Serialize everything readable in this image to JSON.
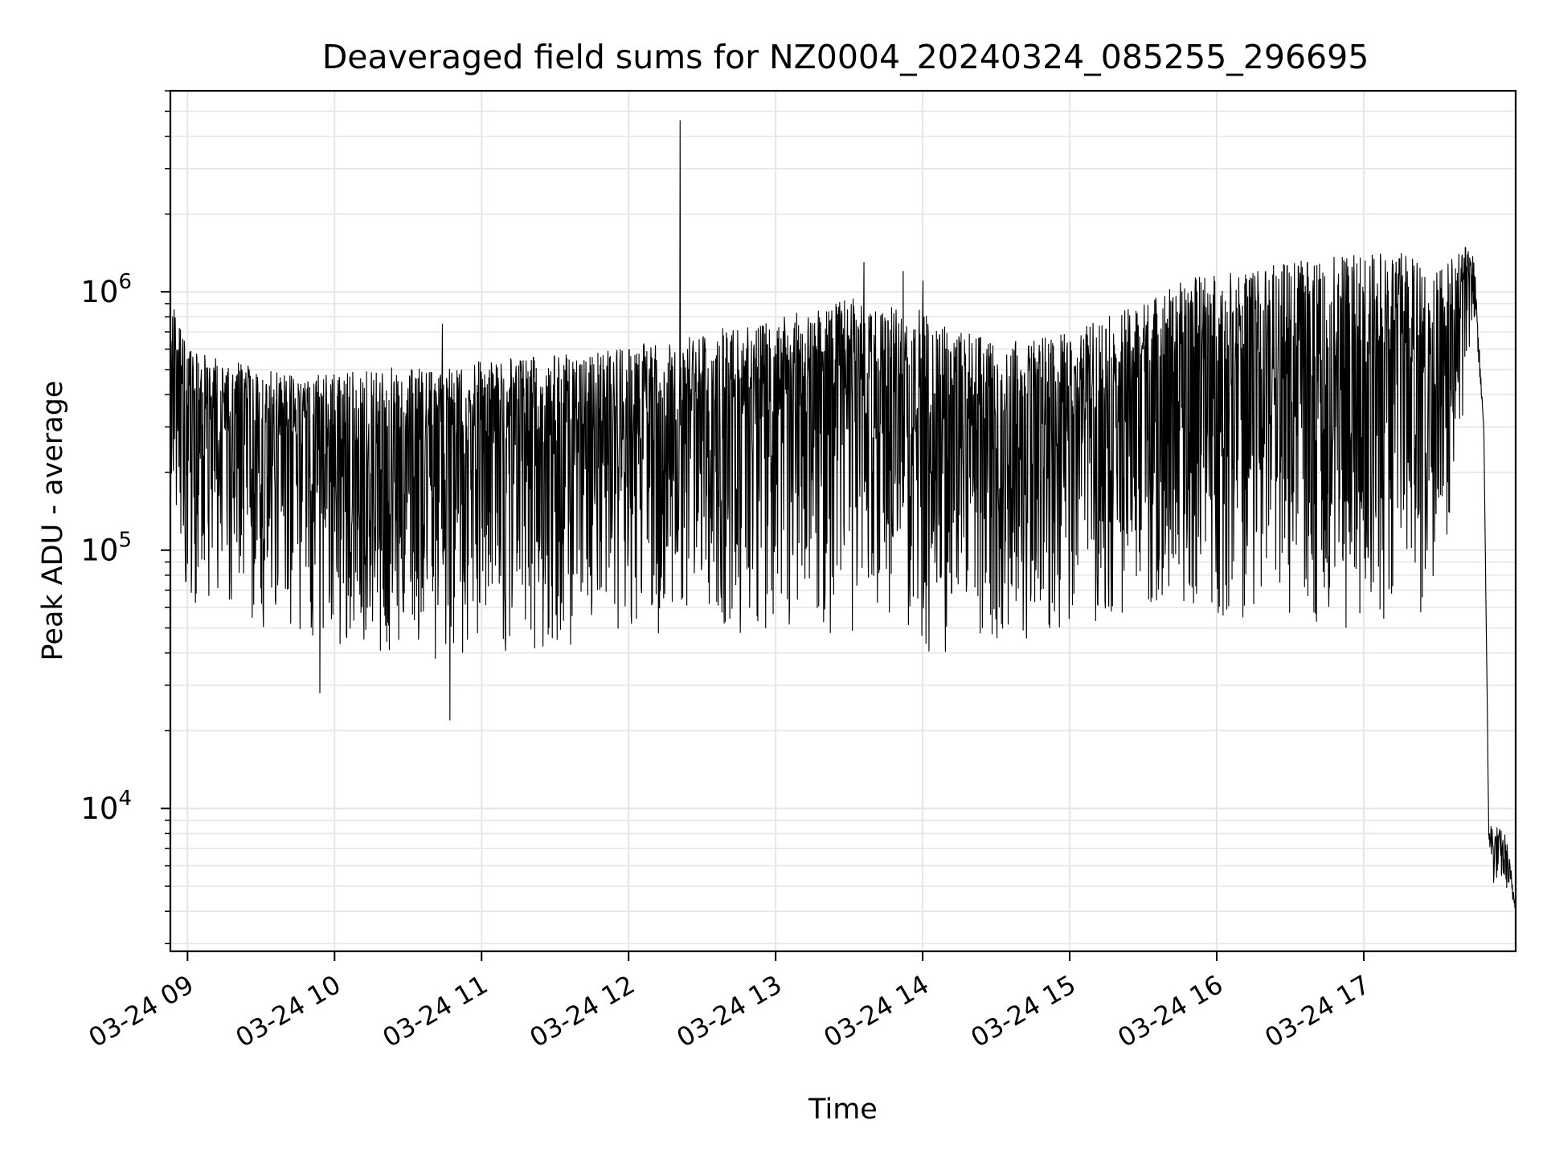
{
  "chart_data": {
    "type": "line",
    "title": "Deaveraged field sums for NZ0004_20240324_085255_296695",
    "xlabel": "Time",
    "ylabel": "Peak ADU - average",
    "x_scale": "time",
    "y_scale": "log",
    "xlim": [
      "2024-03-24 08:53",
      "2024-03-24 18:02"
    ],
    "ylim": [
      2800,
      6000000
    ],
    "x_ticks": [
      {
        "value": "2024-03-24 09:00",
        "label": "03-24 09"
      },
      {
        "value": "2024-03-24 10:00",
        "label": "03-24 10"
      },
      {
        "value": "2024-03-24 11:00",
        "label": "03-24 11"
      },
      {
        "value": "2024-03-24 12:00",
        "label": "03-24 12"
      },
      {
        "value": "2024-03-24 13:00",
        "label": "03-24 13"
      },
      {
        "value": "2024-03-24 14:00",
        "label": "03-24 14"
      },
      {
        "value": "2024-03-24 15:00",
        "label": "03-24 15"
      },
      {
        "value": "2024-03-24 16:00",
        "label": "03-24 16"
      },
      {
        "value": "2024-03-24 17:00",
        "label": "03-24 17"
      }
    ],
    "y_ticks": [
      {
        "value": 10000,
        "base": "10",
        "exponent": "4"
      },
      {
        "value": 100000,
        "base": "10",
        "exponent": "5"
      },
      {
        "value": 1000000,
        "base": "10",
        "exponent": "6"
      }
    ],
    "grid": true,
    "legend": "none",
    "colors": {
      "line": "#000000",
      "grid": "#e6e6e6",
      "axes": "#000000",
      "background": "#ffffff"
    },
    "series": [
      {
        "x": [
          "2024-03-24 08:53",
          "2024-03-24 09:00",
          "2024-03-24 09:15",
          "2024-03-24 09:30",
          "2024-03-24 09:45",
          "2024-03-24 10:00",
          "2024-03-24 10:15",
          "2024-03-24 10:30",
          "2024-03-24 10:45",
          "2024-03-24 11:00",
          "2024-03-24 11:15",
          "2024-03-24 11:30",
          "2024-03-24 11:45",
          "2024-03-24 12:00",
          "2024-03-24 12:15",
          "2024-03-24 12:30",
          "2024-03-24 12:45",
          "2024-03-24 13:00",
          "2024-03-24 13:15",
          "2024-03-24 13:30",
          "2024-03-24 13:45",
          "2024-03-24 14:00",
          "2024-03-24 14:15",
          "2024-03-24 14:30",
          "2024-03-24 14:45",
          "2024-03-24 15:00",
          "2024-03-24 15:15",
          "2024-03-24 15:30",
          "2024-03-24 15:45",
          "2024-03-24 16:00",
          "2024-03-24 16:15",
          "2024-03-24 16:30",
          "2024-03-24 16:45",
          "2024-03-24 17:00",
          "2024-03-24 17:15",
          "2024-03-24 17:30",
          "2024-03-24 17:42",
          "2024-03-24 17:45",
          "2024-03-24 17:49",
          "2024-03-24 17:51",
          "2024-03-24 17:53",
          "2024-03-24 17:55",
          "2024-03-24 17:58",
          "2024-03-24 18:02"
        ],
        "low": [
          150000,
          60000,
          55000,
          50000,
          45000,
          42000,
          40000,
          38000,
          38000,
          40000,
          40000,
          42000,
          42000,
          45000,
          45000,
          47000,
          48000,
          45000,
          42000,
          45000,
          48000,
          40000,
          40000,
          45000,
          45000,
          48000,
          55000,
          60000,
          60000,
          55000,
          50000,
          50000,
          48000,
          48000,
          50000,
          60000,
          400000,
          800000,
          300000,
          7500,
          5000,
          5500,
          5000,
          4000
        ],
        "high": [
          1000000,
          600000,
          550000,
          500000,
          470000,
          480000,
          500000,
          520000,
          500000,
          540000,
          560000,
          570000,
          580000,
          620000,
          650000,
          700000,
          750000,
          800000,
          850000,
          950000,
          900000,
          850000,
          700000,
          650000,
          650000,
          700000,
          800000,
          900000,
          1100000,
          1200000,
          1250000,
          1300000,
          1350000,
          1400000,
          1450000,
          1200000,
          1500000,
          1400000,
          300000,
          9000,
          9000,
          8500,
          8000,
          4500
        ],
        "spikes": [
          {
            "x": "2024-03-24 12:21",
            "y": 4600000
          },
          {
            "x": "2024-03-24 10:47",
            "y": 22000
          },
          {
            "x": "2024-03-24 09:54",
            "y": 28000
          },
          {
            "x": "2024-03-24 13:36",
            "y": 1300000
          },
          {
            "x": "2024-03-24 13:52",
            "y": 1200000
          },
          {
            "x": "2024-03-24 14:00",
            "y": 1100000
          },
          {
            "x": "2024-03-24 10:44",
            "y": 750000
          }
        ]
      }
    ]
  }
}
